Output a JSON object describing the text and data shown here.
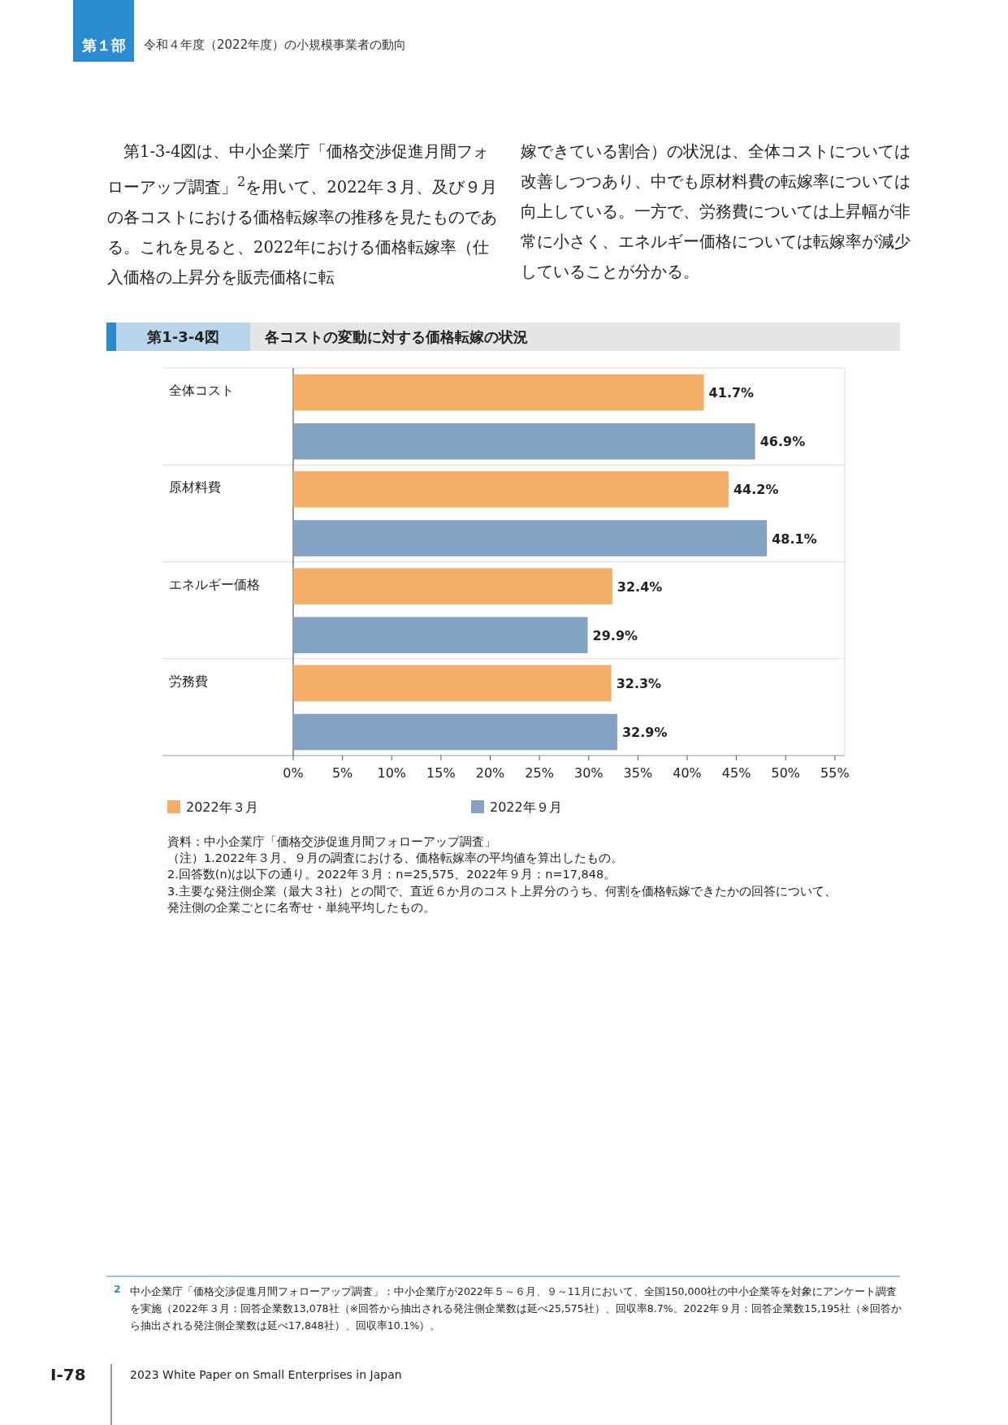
{
  "chart_data": {
    "type": "bar",
    "orientation": "horizontal",
    "title": "各コストの変動に対する価格転嫁の状況",
    "subtitle": "第1-3-4図",
    "categories": [
      "全体コスト",
      "原材料費",
      "エネルギー価格",
      "労務費"
    ],
    "series": [
      {
        "name": "2022年３月",
        "color": "#f4ae68",
        "values": [
          41.7,
          44.2,
          32.4,
          32.3
        ],
        "value_labels": [
          "41.7%",
          "44.2%",
          "32.4%",
          "32.3%"
        ]
      },
      {
        "name": "2022年９月",
        "color": "#84a3c4",
        "values": [
          46.9,
          48.1,
          29.9,
          32.9
        ],
        "value_labels": [
          "46.9%",
          "48.1%",
          "29.9%",
          "32.9%"
        ]
      }
    ],
    "xlim": [
      0,
      56
    ],
    "xticks": [
      {
        "value": 0,
        "label": "0%"
      },
      {
        "value": 5,
        "label": "5%"
      },
      {
        "value": 10,
        "label": "10%"
      },
      {
        "value": 15,
        "label": "15%"
      },
      {
        "value": 20,
        "label": "20%"
      },
      {
        "value": 25,
        "label": "25%"
      },
      {
        "value": 30,
        "label": "30%"
      },
      {
        "value": 35,
        "label": "35%"
      },
      {
        "value": 40,
        "label": "40%"
      },
      {
        "value": 45,
        "label": "45%"
      },
      {
        "value": 50,
        "label": "50%"
      },
      {
        "value": 55,
        "label": "55%"
      }
    ],
    "legend": "bottom",
    "annotations": [
      "第１部",
      "令和４年度（2022年度）の小規模事業者の動向",
      "　第1-3-4図は、中小企業庁「価格交渉促進月間フォローアップ調査」$^{2}$を用いて、2022年３月、及び９月の各コストにおける価格転嫁率の推移を見たものである。これを見ると、2022年における価格転嫁率（仕入価格の上昇分を販売価格に転",
      "嫁できている割合）の状況は、全体コストについては改善しつつあり、中でも原材料費の転嫁率については向上している。一方で、労務費については上昇幅が非常に小さく、エネルギー価格については転嫁率が減少していることが分かる。",
      "資料：中小企業庁「価格交渉促進月間フォローアップ調査」",
      "（注）1.2022年３月、９月の調査における、価格転嫁率の平均値を算出したもの。",
      "2.回答数(n)は以下の通り。2022年３月：n=25,575、2022年９月：n=17,848。",
      "3.主要な発注側企業（最大３社）との間で、直近６か月のコスト上昇分のうち、何割を価格転嫁できたかの回答について、発注側の企業ごとに名寄せ・単純平均したもの。",
      "2",
      "中小企業庁「価格交渉促進月間フォローアップ調査」：中小企業庁が2022年５～６月、９～11月において、全国150,000社の中小企業等を対象にアンケート調査を実施（2022年３月：回答企業数13,078社（※回答から抽出される発注側企業数は延べ25,575社）、回収率8.7%。2022年９月：回答企業数15,195社（※回答から抽出される発注側企業数は延べ17,848社）、回収率10.1%）。",
      "I-78",
      "2023 White Paper on Small Enterprises in Japan"
    ]
  }
}
